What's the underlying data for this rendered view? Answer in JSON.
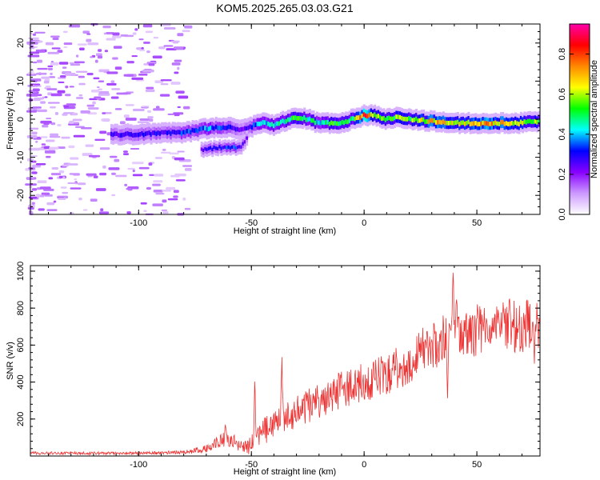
{
  "chart_data": [
    {
      "type": "heatmap",
      "title": "KOM5.2025.265.03.03.G21",
      "xlabel": "Height of straight line (km)",
      "ylabel": "Frequency (Hz)",
      "xlim": [
        -148,
        78
      ],
      "ylim": [
        -25,
        25
      ],
      "xticks": [
        -100,
        -50,
        0,
        50
      ],
      "yticks": [
        -20,
        -10,
        0,
        10,
        20
      ],
      "xtick_labels": [
        "-100",
        "-50",
        "0",
        "50"
      ],
      "ytick_labels": [
        "-20",
        "-10",
        "0",
        "10",
        "20"
      ],
      "colorbar": {
        "label": "Normalized spectral amplitude",
        "range": [
          0,
          0.95
        ],
        "ticks": [
          0.0,
          0.2,
          0.4,
          0.6,
          0.8
        ],
        "tick_labels": [
          "0.0",
          "0.2",
          "0.4",
          "0.6",
          "0.8"
        ],
        "colors": [
          "#ffffff",
          "#cc99ff",
          "#8800ff",
          "#0000ff",
          "#00ffff",
          "#00ff00",
          "#ffff00",
          "#ff8800",
          "#ff0000",
          "#ff00aa"
        ]
      },
      "ridge": {
        "x": [
          -112,
          -100,
          -90,
          -80,
          -70,
          -60,
          -55,
          -50,
          -45,
          -40,
          -35,
          -30,
          -25,
          -20,
          -15,
          -10,
          -5,
          0,
          5,
          10,
          15,
          20,
          30,
          40,
          50,
          60,
          70,
          78
        ],
        "freq": [
          -4,
          -4,
          -3.5,
          -3.5,
          -2.5,
          -2,
          -3,
          -2,
          -1,
          -1.5,
          -0.5,
          0.5,
          0,
          -1,
          -1,
          -1,
          0,
          1,
          1,
          0,
          0.5,
          0,
          -0.5,
          -1,
          -1,
          -1,
          -1,
          -0.5
        ],
        "amp": [
          0.25,
          0.3,
          0.3,
          0.35,
          0.4,
          0.3,
          0.25,
          0.3,
          0.45,
          0.45,
          0.45,
          0.55,
          0.5,
          0.45,
          0.5,
          0.6,
          0.5,
          0.85,
          0.6,
          0.5,
          0.6,
          0.55,
          0.7,
          0.65,
          0.75,
          0.7,
          0.65,
          0.55
        ]
      },
      "branch": {
        "x": [
          -72,
          -65,
          -58,
          -54,
          -52
        ],
        "freq": [
          -8,
          -7.5,
          -7.5,
          -7,
          -5
        ],
        "amp": [
          0.25,
          0.3,
          0.35,
          0.3,
          0.25
        ]
      }
    },
    {
      "type": "line",
      "xlabel": "Height of straight line (km)",
      "ylabel": "SNR (v/v)",
      "xlim": [
        -148,
        78
      ],
      "ylim": [
        0,
        1030
      ],
      "xticks": [
        -100,
        -50,
        0,
        50
      ],
      "yticks": [
        200,
        400,
        600,
        800,
        1000
      ],
      "xtick_labels": [
        "-100",
        "-50",
        "0",
        "50"
      ],
      "ytick_labels": [
        "200",
        "400",
        "600",
        "800",
        "1000"
      ],
      "color": "#ee3333",
      "trend": {
        "x": [
          -148,
          -100,
          -80,
          -70,
          -62,
          -58,
          -55,
          -50,
          -45,
          -40,
          -30,
          -20,
          -10,
          0,
          10,
          20,
          25,
          30,
          40,
          50,
          60,
          70,
          78
        ],
        "mean": [
          15,
          15,
          20,
          40,
          90,
          80,
          50,
          60,
          120,
          170,
          240,
          300,
          360,
          400,
          450,
          510,
          560,
          600,
          650,
          680,
          700,
          700,
          710
        ],
        "spread": [
          8,
          8,
          10,
          20,
          40,
          40,
          30,
          60,
          90,
          90,
          90,
          95,
          100,
          110,
          120,
          120,
          130,
          130,
          140,
          140,
          140,
          140,
          140
        ]
      },
      "peaks": [
        {
          "x": -61.5,
          "y": 175
        },
        {
          "x": -48.5,
          "y": 440
        },
        {
          "x": -36.5,
          "y": 560
        },
        {
          "x": 39.5,
          "y": 1030
        },
        {
          "x": 41,
          "y": 850
        },
        {
          "x": 37,
          "y": 300
        },
        {
          "x": 64.5,
          "y": 860
        },
        {
          "x": 75.5,
          "y": 490
        }
      ]
    }
  ]
}
